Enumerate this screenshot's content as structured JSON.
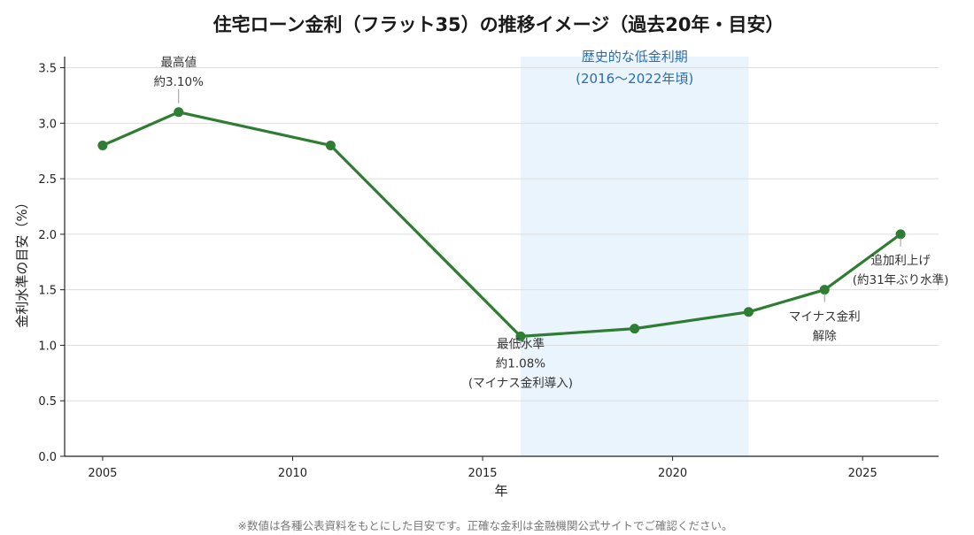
{
  "chart_data": {
    "type": "line",
    "title": "住宅ローン金利（フラット35）の推移イメージ（過去20年・目安）",
    "xlabel": "年",
    "ylabel": "金利水準の目安（%）",
    "xlim": [
      2004,
      2027
    ],
    "ylim": [
      0,
      3.6
    ],
    "x_ticks": [
      2005,
      2010,
      2015,
      2020,
      2025
    ],
    "y_ticks": [
      0.0,
      0.5,
      1.0,
      1.5,
      2.0,
      2.5,
      3.0,
      3.5
    ],
    "grid": "horizontal",
    "line_color": "#2e7d32",
    "band_color": "#eaf4fd",
    "series": [
      {
        "x": [
          2005,
          2007,
          2011,
          2016,
          2019,
          2022,
          2024,
          2026
        ],
        "y": [
          2.8,
          3.1,
          2.8,
          1.08,
          1.15,
          1.3,
          1.5,
          2.0
        ]
      }
    ],
    "highlight_band": {
      "x_start": 2016,
      "x_end": 2022,
      "label": [
        "歴史的な低金利期",
        "(2016〜2022年頃)"
      ]
    },
    "annotations": [
      {
        "x": 2007,
        "y": 3.1,
        "lines": [
          "最高値",
          "約3.10%"
        ]
      },
      {
        "x": 2016,
        "y": 1.08,
        "lines": [
          "最低水準",
          "約1.08%",
          "(マイナス金利導入)"
        ]
      },
      {
        "x": 2024,
        "y": 1.5,
        "lines": [
          "マイナス金利",
          "解除"
        ]
      },
      {
        "x": 2026,
        "y": 2.0,
        "lines": [
          "追加利上げ",
          "(約31年ぶり水準)"
        ]
      }
    ]
  },
  "footnote": "※数値は各種公表資料をもとにした目安です。正確な金利は金融機関公式サイトでご確認ください。"
}
